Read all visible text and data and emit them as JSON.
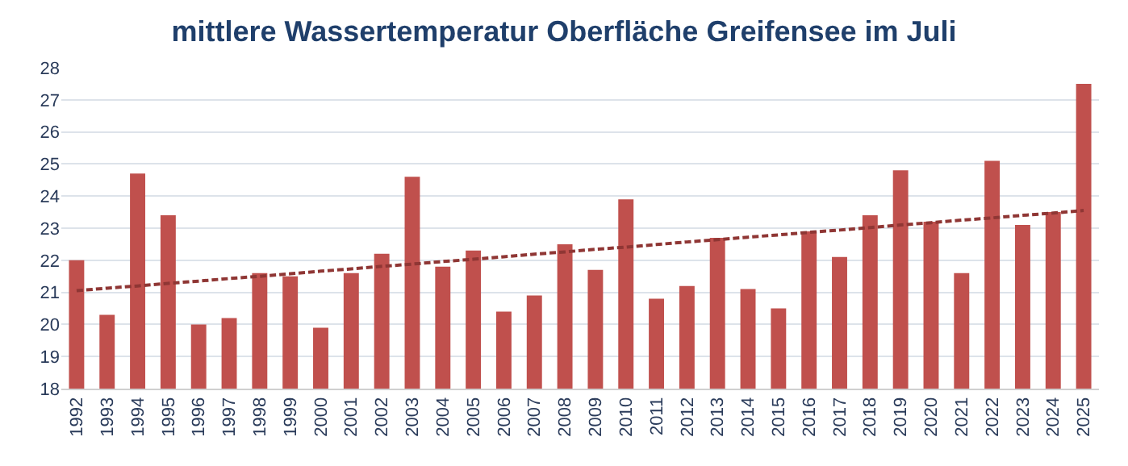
{
  "chart_data": {
    "type": "bar",
    "title": "mittlere Wassertemperatur Oberfläche Greifensee im Juli",
    "categories": [
      "1992",
      "1993",
      "1994",
      "1995",
      "1996",
      "1997",
      "1998",
      "1999",
      "2000",
      "2001",
      "2002",
      "2003",
      "2004",
      "2005",
      "2006",
      "2007",
      "2008",
      "2009",
      "2010",
      "2011",
      "2012",
      "2013",
      "2014",
      "2015",
      "2016",
      "2017",
      "2018",
      "2019",
      "2020",
      "2021",
      "2022",
      "2023",
      "2024",
      "2025"
    ],
    "series": [
      {
        "color": "#c0504d",
        "values": [
          22.0,
          20.3,
          24.7,
          23.4,
          20.0,
          20.2,
          21.6,
          21.5,
          19.9,
          21.6,
          22.2,
          24.6,
          21.8,
          22.3,
          20.4,
          20.9,
          22.5,
          21.7,
          23.9,
          20.8,
          21.2,
          22.7,
          21.1,
          20.5,
          22.9,
          22.1,
          23.4,
          24.8,
          23.2,
          21.6,
          25.1,
          23.1,
          23.5,
          27.5
        ]
      },
      {
        "type": "line",
        "color": "#8f3634",
        "line_style": "dashed",
        "marker": "none",
        "values": [
          21.05,
          21.13,
          21.2,
          21.28,
          21.35,
          21.43,
          21.5,
          21.58,
          21.66,
          21.73,
          21.81,
          21.88,
          21.96,
          22.03,
          22.11,
          22.19,
          22.26,
          22.34,
          22.41,
          22.49,
          22.57,
          22.64,
          22.72,
          22.79,
          22.87,
          22.94,
          23.02,
          23.1,
          23.17,
          23.25,
          23.32,
          23.4,
          23.47,
          23.55
        ]
      }
    ],
    "ylim": [
      18,
      28
    ],
    "yticks": [
      18,
      19,
      20,
      21,
      22,
      23,
      24,
      25,
      26,
      27,
      28
    ],
    "grid": "y"
  }
}
